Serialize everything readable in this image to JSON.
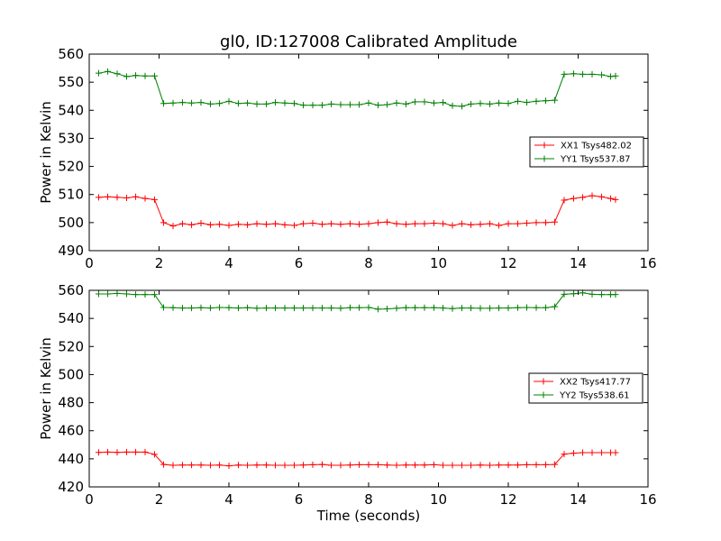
{
  "figure": {
    "title": "gl0, ID:127008 Calibrated Amplitude",
    "xlabel": "Time (seconds)"
  },
  "chart_data": [
    {
      "type": "line",
      "xlabel": "",
      "ylabel": "Power in Kelvin",
      "xlim": [
        0,
        16
      ],
      "ylim": [
        490,
        560
      ],
      "xticks": [
        0,
        2,
        4,
        6,
        8,
        10,
        12,
        14,
        16
      ],
      "yticks": [
        490,
        500,
        510,
        520,
        530,
        540,
        550,
        560
      ],
      "legend": "center-right",
      "grid": false,
      "x": [
        0.27,
        0.53,
        0.8,
        1.07,
        1.33,
        1.6,
        1.87,
        2.13,
        2.4,
        2.67,
        2.93,
        3.2,
        3.47,
        3.73,
        4.0,
        4.27,
        4.53,
        4.8,
        5.07,
        5.33,
        5.6,
        5.87,
        6.13,
        6.4,
        6.67,
        6.93,
        7.2,
        7.47,
        7.73,
        8.0,
        8.27,
        8.53,
        8.8,
        9.07,
        9.33,
        9.6,
        9.87,
        10.13,
        10.4,
        10.67,
        10.93,
        11.2,
        11.47,
        11.73,
        12.0,
        12.27,
        12.53,
        12.8,
        13.07,
        13.33,
        13.6,
        13.87,
        14.13,
        14.4,
        14.67,
        14.93,
        15.07
      ],
      "series": [
        {
          "name": "XX1 Tsys482.02",
          "color": "#ff0000",
          "values": [
            509,
            509.2,
            509,
            508.8,
            509.2,
            508.6,
            508.2,
            500,
            498.8,
            499.6,
            499.2,
            499.8,
            499.2,
            499.4,
            499,
            499.4,
            499.2,
            499.6,
            499.4,
            499.6,
            499.2,
            499,
            499.6,
            499.8,
            499.4,
            499.6,
            499.4,
            499.6,
            499.4,
            499.6,
            500,
            500.2,
            499.6,
            499.4,
            499.6,
            499.6,
            499.8,
            499.6,
            499,
            499.6,
            499.2,
            499.4,
            499.6,
            499,
            499.6,
            499.6,
            499.8,
            500,
            500,
            500.2,
            508,
            508.6,
            509,
            509.6,
            509.2,
            508.6,
            508.2
          ]
        },
        {
          "name": "YY1 Tsys537.87",
          "color": "#008000",
          "values": [
            553.2,
            553.8,
            553,
            552,
            552.4,
            552.2,
            552.2,
            542.4,
            542.6,
            542.8,
            542.6,
            542.8,
            542.2,
            542.4,
            543.2,
            542.4,
            542.6,
            542.2,
            542.2,
            542.8,
            542.6,
            542.4,
            541.8,
            541.8,
            541.8,
            542.2,
            542,
            542,
            542,
            542.6,
            541.8,
            542,
            542.6,
            542.2,
            543,
            543,
            542.6,
            542.8,
            541.6,
            541.4,
            542.2,
            542.4,
            542.2,
            542.6,
            542.4,
            543.2,
            542.8,
            543.2,
            543.4,
            543.6,
            552.8,
            553,
            552.8,
            552.8,
            552.6,
            552,
            552.2
          ]
        }
      ]
    },
    {
      "type": "line",
      "xlabel": "Time (seconds)",
      "ylabel": "Power in Kelvin",
      "xlim": [
        0,
        16
      ],
      "ylim": [
        420,
        560
      ],
      "xticks": [
        0,
        2,
        4,
        6,
        8,
        10,
        12,
        14,
        16
      ],
      "yticks": [
        420,
        440,
        460,
        480,
        500,
        520,
        540,
        560
      ],
      "legend": "center-right",
      "grid": false,
      "x": [
        0.27,
        0.53,
        0.8,
        1.07,
        1.33,
        1.6,
        1.87,
        2.13,
        2.4,
        2.67,
        2.93,
        3.2,
        3.47,
        3.73,
        4.0,
        4.27,
        4.53,
        4.8,
        5.07,
        5.33,
        5.6,
        5.87,
        6.13,
        6.4,
        6.67,
        6.93,
        7.2,
        7.47,
        7.73,
        8.0,
        8.27,
        8.53,
        8.8,
        9.07,
        9.33,
        9.6,
        9.87,
        10.13,
        10.4,
        10.67,
        10.93,
        11.2,
        11.47,
        11.73,
        12.0,
        12.27,
        12.53,
        12.8,
        13.07,
        13.33,
        13.6,
        13.87,
        14.13,
        14.4,
        14.67,
        14.93,
        15.07
      ],
      "series": [
        {
          "name": "XX2 Tsys417.77",
          "color": "#ff0000",
          "values": [
            444.6,
            444.8,
            444.6,
            444.8,
            444.8,
            444.8,
            443.2,
            436,
            435.4,
            435.6,
            435.6,
            435.6,
            435.4,
            435.6,
            435,
            435.6,
            435.4,
            435.6,
            435.6,
            435.4,
            435.4,
            435.4,
            435.6,
            435.8,
            436,
            435.4,
            435.4,
            435.6,
            435.8,
            435.8,
            435.8,
            435.6,
            435.4,
            435.6,
            435.6,
            435.6,
            435.8,
            435.4,
            435.4,
            435.4,
            435.4,
            435.6,
            435.4,
            435.6,
            435.6,
            435.6,
            435.8,
            435.8,
            435.8,
            436,
            443.4,
            444,
            444.4,
            444.4,
            444.4,
            444.4,
            444.4
          ]
        },
        {
          "name": "YY2 Tsys538.61",
          "color": "#008000",
          "values": [
            557.4,
            557.4,
            557.8,
            557.4,
            557,
            557,
            557,
            547.8,
            547.6,
            547.4,
            547.4,
            547.6,
            547.4,
            547.8,
            547.6,
            547.4,
            547.6,
            547.2,
            547.4,
            547.4,
            547.4,
            547.4,
            547.4,
            547.4,
            547.4,
            547.4,
            547.2,
            547.6,
            547.6,
            547.8,
            546.6,
            546.8,
            547.2,
            547.6,
            547.6,
            547.6,
            547.6,
            547.4,
            547,
            547.4,
            547.4,
            547.2,
            547.2,
            547.4,
            547.4,
            547.6,
            547.8,
            547.6,
            547.6,
            548.4,
            557.2,
            557.6,
            558.2,
            557.2,
            557,
            557,
            557
          ]
        }
      ]
    }
  ]
}
